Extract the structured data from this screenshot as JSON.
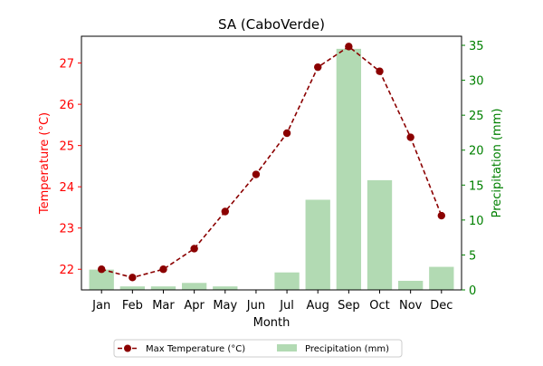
{
  "chart_data": {
    "type": "bar+line",
    "title": "SA (CaboVerde)",
    "xlabel": "Month",
    "ylabel_left": "Temperature (°C)",
    "ylabel_right": "Precipitation (mm)",
    "categories": [
      "Jan",
      "Feb",
      "Mar",
      "Apr",
      "May",
      "Jun",
      "Jul",
      "Aug",
      "Sep",
      "Oct",
      "Nov",
      "Dec"
    ],
    "series": [
      {
        "name": "Max Temperature (°C)",
        "type": "line",
        "axis": "left",
        "color": "#8b0000",
        "values": [
          22.0,
          21.8,
          22.0,
          22.5,
          23.4,
          24.3,
          25.3,
          26.9,
          27.4,
          26.8,
          25.2,
          23.3
        ]
      },
      {
        "name": "Precipitation (mm)",
        "type": "bar",
        "axis": "right",
        "color": "#b2dab3",
        "values": [
          2.9,
          0.5,
          0.5,
          1.0,
          0.5,
          0.0,
          2.5,
          12.9,
          34.5,
          15.7,
          1.3,
          3.3
        ]
      }
    ],
    "ylim_left": [
      21.5,
      27.65
    ],
    "ylim_right": [
      0,
      36.3
    ],
    "yticks_left": [
      "22",
      "23",
      "24",
      "25",
      "26",
      "27"
    ],
    "yticks_right": [
      "0",
      "5",
      "10",
      "15",
      "20",
      "25",
      "30",
      "35"
    ],
    "left_axis_color": "#ff0000",
    "right_axis_color": "#008000",
    "grid": false,
    "legend_position": "bottom-center"
  }
}
